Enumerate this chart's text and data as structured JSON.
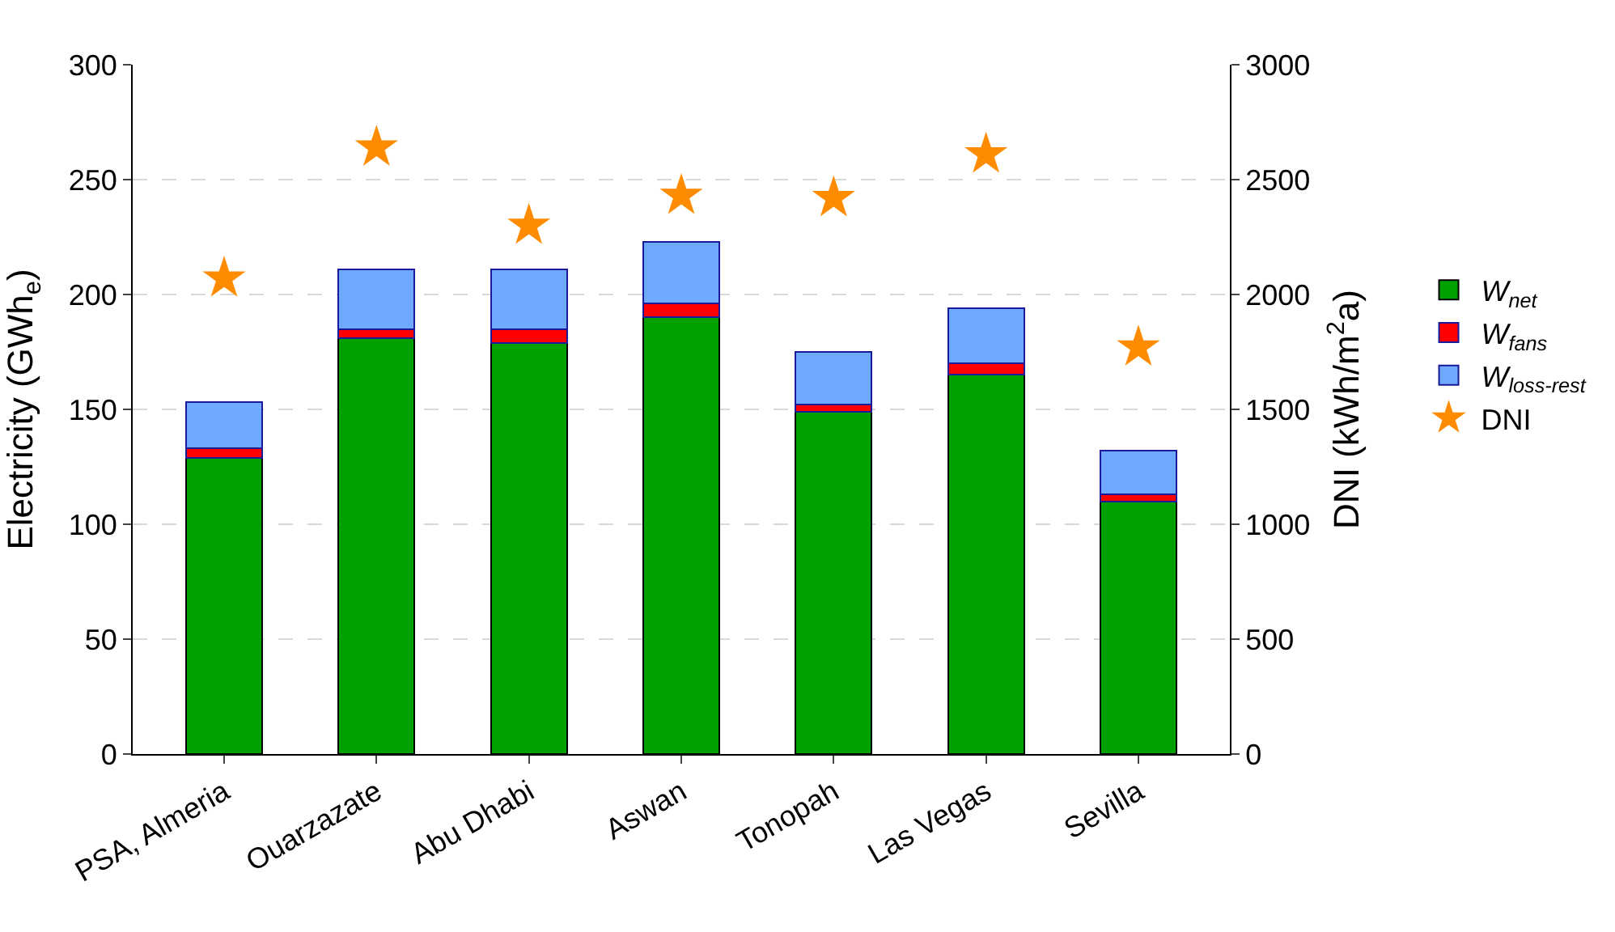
{
  "chart_data": {
    "type": "bar",
    "stacked": true,
    "categories": [
      "PSA, Almeria",
      "Ouarzazate",
      "Abu Dhabi",
      "Aswan",
      "Tonopah",
      "Las Vegas",
      "Sevilla"
    ],
    "series": [
      {
        "name": "W$_{net}$",
        "color": "#00a000",
        "values": [
          129,
          181,
          179,
          190,
          149,
          165,
          110
        ]
      },
      {
        "name": "W$_{fans}$",
        "color": "#ff0000",
        "values": [
          4,
          4,
          6,
          6,
          3,
          5,
          3
        ]
      },
      {
        "name": "W$_{loss-rest}$",
        "color": "#6fa8ff",
        "values": [
          20,
          26,
          26,
          27,
          23,
          24,
          19
        ]
      },
      {
        "name": "DNI",
        "type": "scatter",
        "axis": "y2",
        "marker": "star",
        "color": "#ff8c00",
        "values": [
          2070,
          2640,
          2300,
          2430,
          2420,
          2610,
          1770
        ]
      }
    ],
    "ylabel": "Electricity (GWh$_{e}$)",
    "y2label": "DNI (kWh/m$^{2}$a)",
    "ylim": [
      0,
      300
    ],
    "yticks": [
      0,
      50,
      100,
      150,
      200,
      250,
      300
    ],
    "y2lim": [
      0,
      3000
    ],
    "y2ticks": [
      0,
      500,
      1000,
      1500,
      2000,
      2500,
      3000
    ],
    "grid": "y",
    "legend": "right"
  }
}
